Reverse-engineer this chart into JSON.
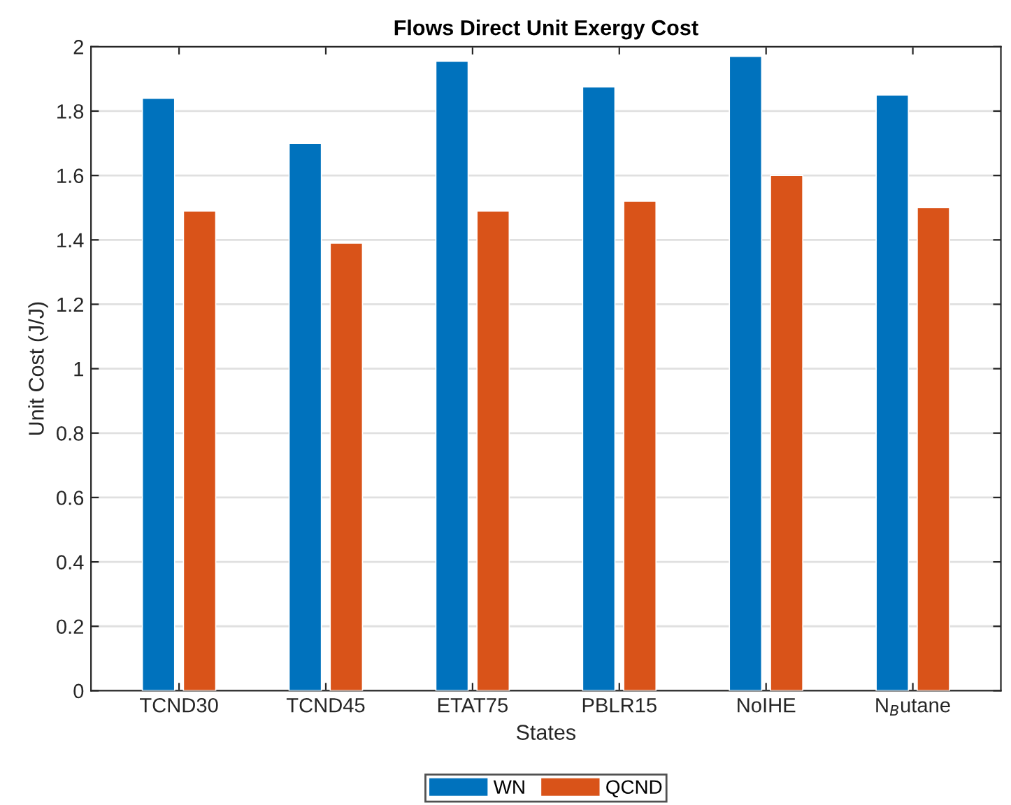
{
  "chart_data": {
    "type": "bar",
    "title": "Flows Direct Unit Exergy Cost",
    "xlabel": "States",
    "ylabel": "Unit Cost (J/J)",
    "categories": [
      "TCND30",
      "TCND45",
      "ETAT75",
      "PBLR15",
      "NoIHE",
      "N$_{B}$utane"
    ],
    "series": [
      {
        "name": "WN",
        "color": "#0072bd",
        "values": [
          1.84,
          1.7,
          1.955,
          1.875,
          1.97,
          1.85
        ]
      },
      {
        "name": "QCND",
        "color": "#d95319",
        "values": [
          1.49,
          1.39,
          1.49,
          1.52,
          1.6,
          1.5
        ]
      }
    ],
    "ylim": [
      0,
      2
    ],
    "yticks": [
      0,
      0.2,
      0.4,
      0.6,
      0.8,
      1,
      1.2,
      1.4,
      1.6,
      1.8,
      2
    ],
    "grid": "y",
    "legend": "bottom"
  }
}
